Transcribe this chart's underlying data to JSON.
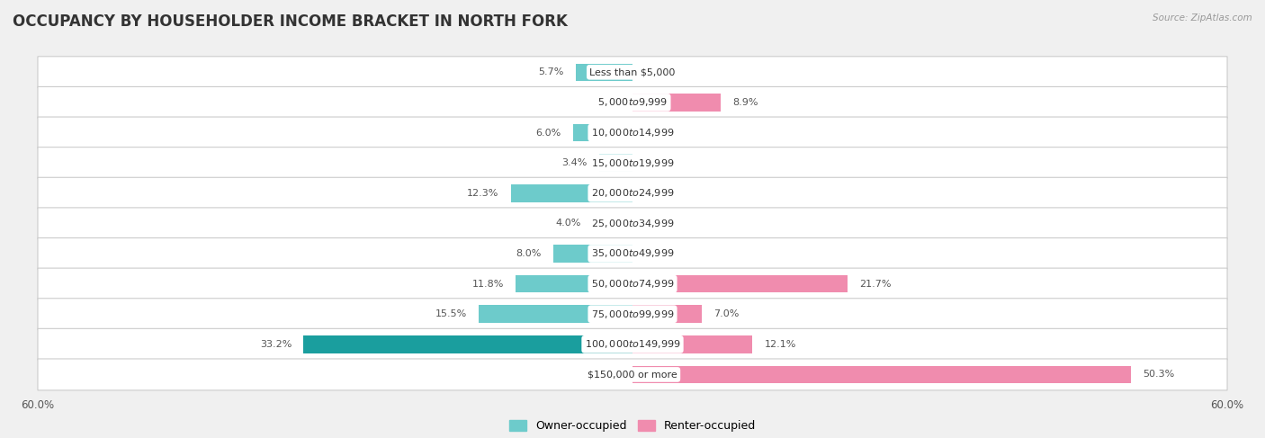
{
  "title": "OCCUPANCY BY HOUSEHOLDER INCOME BRACKET IN NORTH FORK",
  "source": "Source: ZipAtlas.com",
  "categories": [
    "Less than $5,000",
    "$5,000 to $9,999",
    "$10,000 to $14,999",
    "$15,000 to $19,999",
    "$20,000 to $24,999",
    "$25,000 to $34,999",
    "$35,000 to $49,999",
    "$50,000 to $74,999",
    "$75,000 to $99,999",
    "$100,000 to $149,999",
    "$150,000 or more"
  ],
  "owner_values": [
    5.7,
    0.0,
    6.0,
    3.4,
    12.3,
    4.0,
    8.0,
    11.8,
    15.5,
    33.2,
    0.0
  ],
  "renter_values": [
    0.0,
    8.9,
    0.0,
    0.0,
    0.0,
    0.0,
    0.0,
    21.7,
    7.0,
    12.1,
    50.3
  ],
  "owner_color": "#6dcbcb",
  "renter_color": "#f08cae",
  "owner_color_dark": "#1a9e9e",
  "axis_limit": 60.0,
  "background_color": "#f0f0f0",
  "row_bg_color": "#ffffff",
  "bar_height": 0.58,
  "title_fontsize": 12,
  "label_fontsize": 8,
  "category_fontsize": 8,
  "legend_fontsize": 9,
  "axis_label_fontsize": 8.5
}
